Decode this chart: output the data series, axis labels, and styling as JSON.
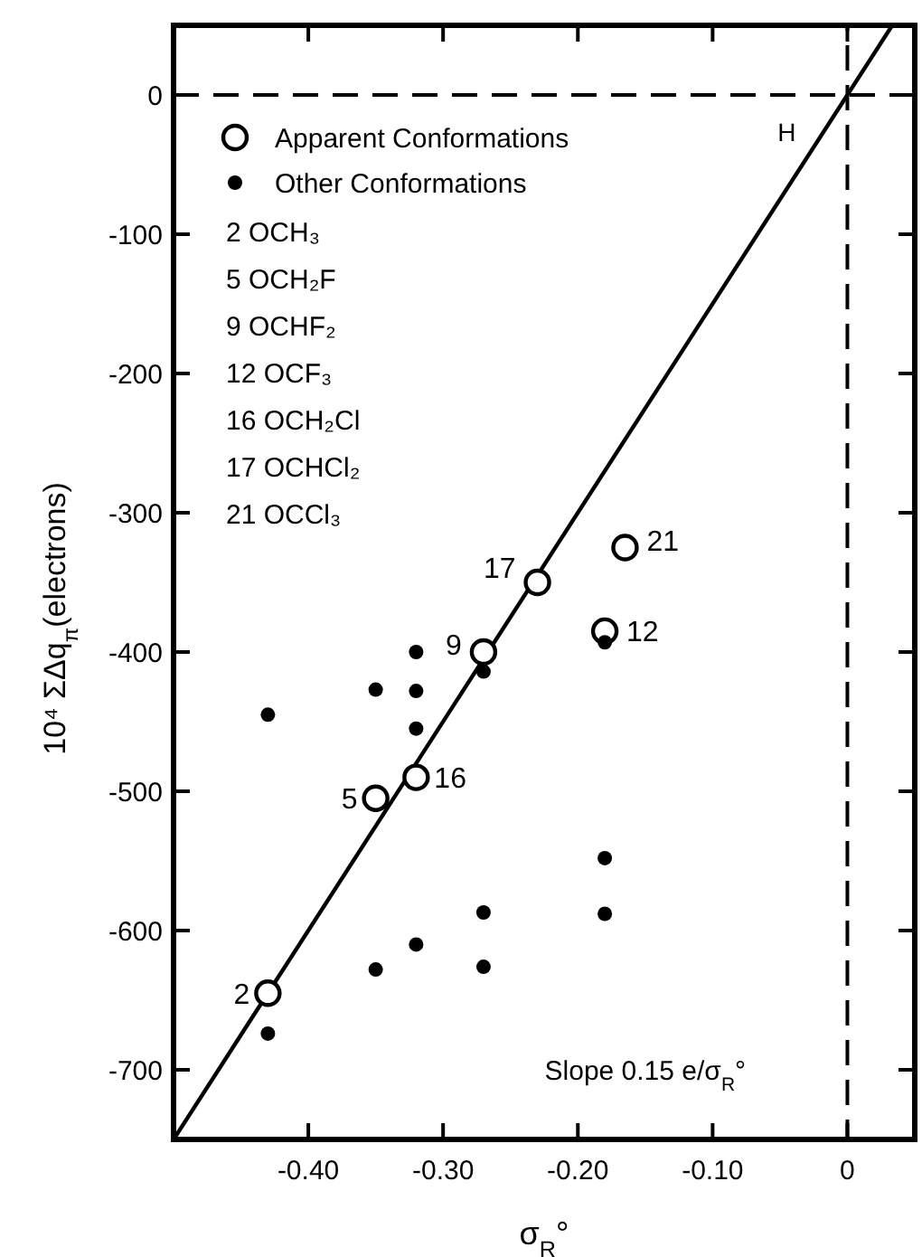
{
  "chart_data": {
    "type": "scatter",
    "xlabel": "σ$_{R}$°",
    "ylabel": "10⁴ ΣΔq$_{π}$(electrons)",
    "xlim": [
      -0.5,
      0.05
    ],
    "ylim": [
      -750,
      50
    ],
    "xticks": [
      {
        "value": -0.4,
        "label": "-0.40"
      },
      {
        "value": -0.3,
        "label": "-0.30"
      },
      {
        "value": -0.2,
        "label": "-0.20"
      },
      {
        "value": -0.1,
        "label": "-0.10"
      },
      0
    ],
    "yticks": [
      0,
      -100,
      -200,
      -300,
      -400,
      -500,
      -600,
      -700
    ],
    "grid": false,
    "legend": "top left",
    "marker": "circle",
    "series": [
      {
        "name": "Apparent Conformations",
        "color": "#000000",
        "x": [
          -0.43,
          -0.35,
          -0.32,
          -0.27,
          -0.23,
          -0.18,
          -0.165
        ],
        "values": [
          -645,
          -505,
          -490,
          -400,
          -350,
          -385,
          -325
        ]
      },
      {
        "name": "Other Conformations",
        "color": "#000000",
        "x": [
          -0.43,
          -0.35,
          -0.32,
          -0.32,
          -0.32,
          -0.27,
          -0.18,
          -0.18,
          -0.18,
          -0.27,
          -0.32,
          -0.27,
          -0.35,
          -0.43
        ],
        "values": [
          -445,
          -427,
          -400,
          -428,
          -455,
          -414,
          -393,
          -548,
          -588,
          -587,
          -610,
          -626,
          -628,
          -674
        ]
      },
      {
        "type": "line",
        "color": "#000000",
        "line_style": "solid",
        "marker": "none",
        "x": [
          -0.5,
          0.0333
        ],
        "values": [
          -750,
          50
        ]
      }
    ],
    "ref_lines": [
      {
        "axis": "y",
        "value": 0,
        "line_style": "dashed"
      },
      {
        "axis": "x",
        "value": 0,
        "line_style": "dashed"
      }
    ],
    "annotations": [
      "2 OCH₃",
      "5 OCH₂F",
      "9 OCHF₂",
      "12 OCF₃",
      "16 OCH₂Cl",
      "17 OCHCl₂",
      "21 OCCl₃",
      "Slope 0.15 e/σ$_{R}$°",
      "H",
      {
        "text": "2",
        "x": -0.43,
        "y": -645
      },
      {
        "text": "5",
        "x": -0.35,
        "y": -505
      },
      {
        "text": "16",
        "x": -0.32,
        "y": -490
      },
      {
        "text": "9",
        "x": -0.27,
        "y": -400
      },
      {
        "text": "17",
        "x": -0.23,
        "y": -350
      },
      {
        "text": "12",
        "x": -0.18,
        "y": -385
      },
      {
        "text": "21",
        "x": -0.165,
        "y": -325
      }
    ]
  }
}
